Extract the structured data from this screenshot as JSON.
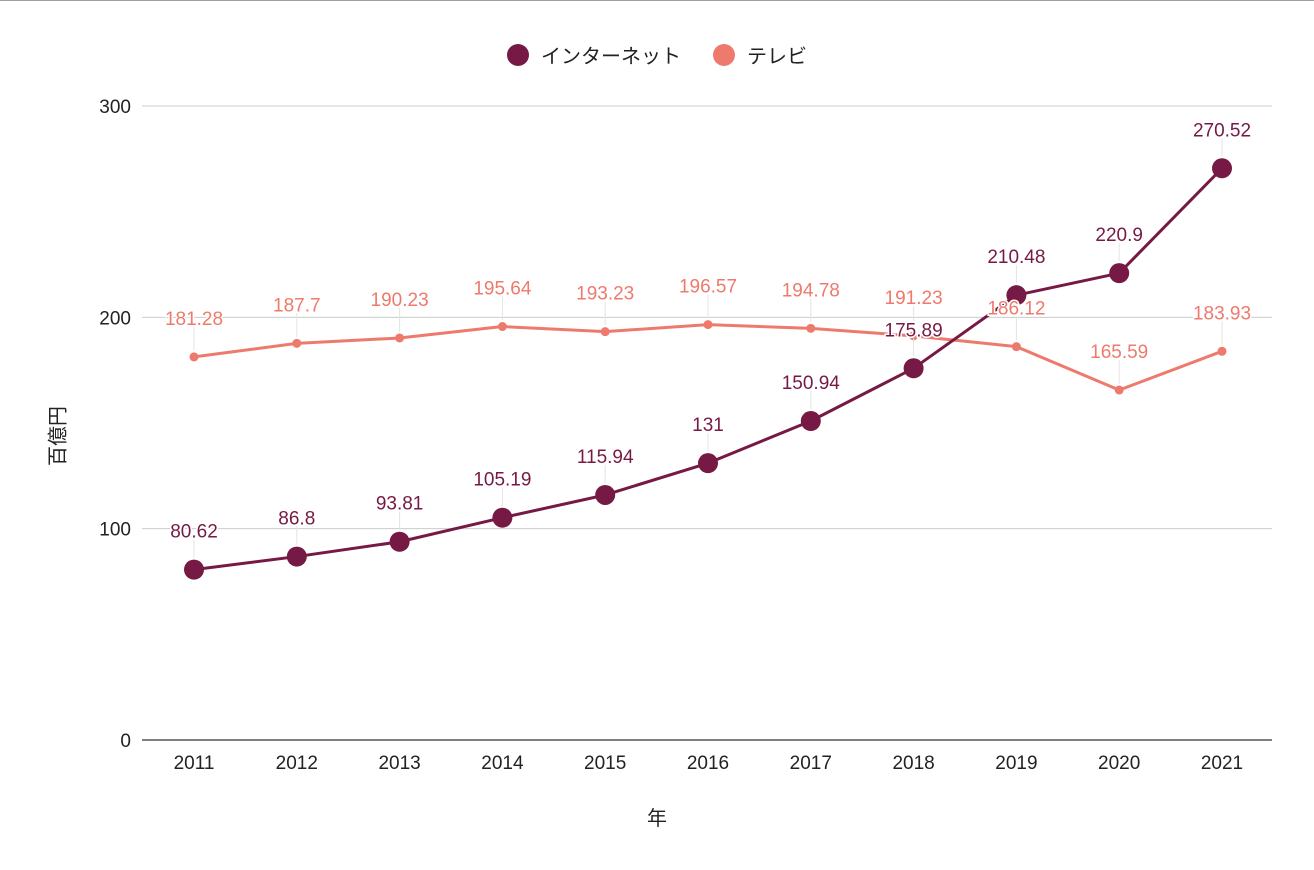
{
  "chart_data": {
    "type": "line",
    "title": "",
    "xlabel": "年",
    "ylabel": "百億円",
    "categories": [
      "2011",
      "2012",
      "2013",
      "2014",
      "2015",
      "2016",
      "2017",
      "2018",
      "2019",
      "2020",
      "2021"
    ],
    "series": [
      {
        "name": "インターネット",
        "color": "#761a45",
        "values": [
          80.62,
          86.8,
          93.81,
          105.19,
          115.94,
          131,
          150.94,
          175.89,
          210.48,
          220.9,
          270.52
        ],
        "labels": [
          "80.62",
          "86.8",
          "93.81",
          "105.19",
          "115.94",
          "131",
          "150.94",
          "175.89",
          "210.48",
          "220.9",
          "270.52"
        ]
      },
      {
        "name": "テレビ",
        "color": "#ee7a6d",
        "values": [
          181.28,
          187.7,
          190.23,
          195.64,
          193.23,
          196.57,
          194.78,
          191.23,
          186.12,
          165.59,
          183.93
        ],
        "labels": [
          "181.28",
          "187.7",
          "190.23",
          "195.64",
          "193.23",
          "196.57",
          "194.78",
          "191.23",
          "186.12",
          "165.59",
          "183.93"
        ]
      }
    ],
    "ylim": [
      0,
      300
    ],
    "yticks": [
      "0",
      "100",
      "200",
      "300"
    ],
    "grid": true,
    "legend_position": "top"
  }
}
